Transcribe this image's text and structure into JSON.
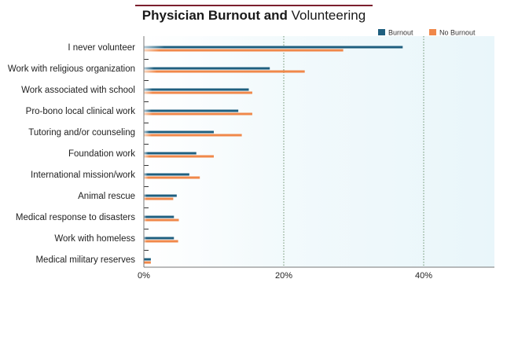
{
  "chart_data": {
    "type": "bar",
    "orientation": "horizontal",
    "title_bold": "Physician Burnout and",
    "title_rest": " Volunteering",
    "categories": [
      "I never volunteer",
      "Work with religious organization",
      "Work associated with school",
      "Pro-bono local clinical work",
      "Tutoring and/or counseling",
      "Foundation work",
      "International mission/work",
      "Animal rescue",
      "Medical response to disasters",
      "Work with homeless",
      "Medical military reserves"
    ],
    "series": [
      {
        "name": "Burnout",
        "color": "#1f5f7f",
        "values": [
          37,
          18,
          15,
          13.5,
          10,
          7.5,
          6.5,
          4.7,
          4.3,
          4.3,
          1
        ]
      },
      {
        "name": "No Burnout",
        "color": "#f0884a",
        "values": [
          28.5,
          23,
          15.5,
          15.5,
          14,
          10,
          8,
          4.2,
          5,
          4.9,
          1
        ]
      }
    ],
    "x_ticks": [
      "0%",
      "20%",
      "40%"
    ],
    "x_tick_values": [
      0,
      20,
      40
    ],
    "xlim": [
      0,
      50
    ],
    "grid": "vertical-dotted",
    "legend_position": "top-right",
    "background_color": "#eef8fb"
  }
}
